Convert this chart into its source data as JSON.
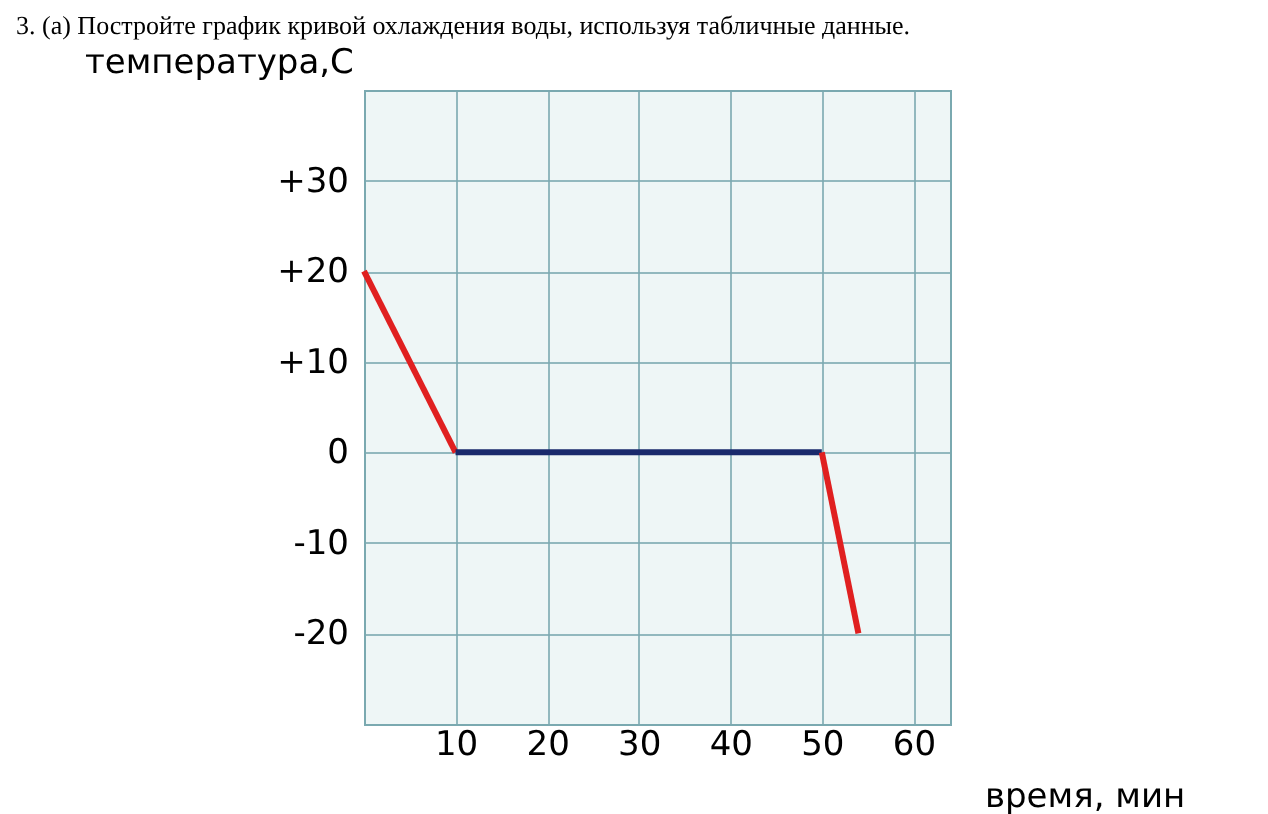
{
  "chart_data": {
    "type": "line",
    "title": "3. (а) Постройте график кривой охлаждения воды, используя табличные данные.",
    "ylabel": "температура,С",
    "xlabel": "время, мин",
    "series": [
      {
        "color": "#e02020",
        "x": [
          0,
          10
        ],
        "values": [
          20,
          0
        ]
      },
      {
        "color": "#1a2a6c",
        "x": [
          10,
          50
        ],
        "values": [
          0,
          0
        ]
      },
      {
        "color": "#e02020",
        "x": [
          50,
          54
        ],
        "values": [
          0,
          -20
        ]
      }
    ],
    "xlim": [
      0,
      64
    ],
    "ylim": [
      -30,
      40
    ],
    "xticks": [
      10,
      20,
      30,
      40,
      50,
      60
    ],
    "yticks": [
      {
        "value": 30,
        "label": "+30"
      },
      {
        "value": 20,
        "label": "+20"
      },
      {
        "value": 10,
        "label": "+10"
      },
      0,
      -10,
      -20
    ],
    "grid": true,
    "marker": "none",
    "line_style": "solid"
  }
}
